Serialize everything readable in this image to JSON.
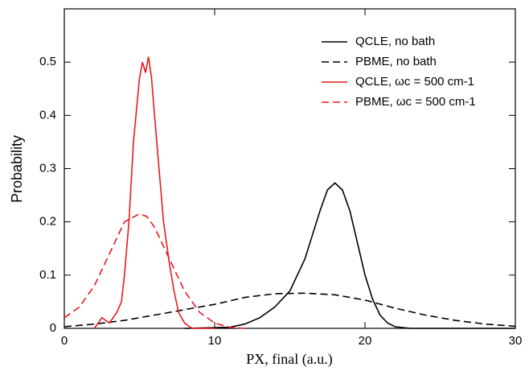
{
  "chart_data": {
    "type": "line",
    "xlabel": "PX, final (a.u.)",
    "ylabel": "Probability",
    "xlim": [
      0,
      30
    ],
    "ylim": [
      0,
      0.6
    ],
    "xticks": [
      0,
      10,
      20,
      30
    ],
    "yticks": [
      0,
      0.1,
      0.2,
      0.3,
      0.4,
      0.5
    ],
    "legend": "upper right",
    "series": [
      {
        "name": "QCLE, no bath",
        "color": "#000000",
        "dash": "solid",
        "x": [
          8,
          11,
          12,
          13,
          14,
          15,
          16,
          17,
          17.5,
          18,
          18.5,
          19,
          19.5,
          20,
          20.5,
          21,
          21.5,
          22,
          23,
          30
        ],
        "values": [
          0,
          0.002,
          0.008,
          0.02,
          0.04,
          0.07,
          0.13,
          0.22,
          0.26,
          0.273,
          0.26,
          0.22,
          0.16,
          0.1,
          0.055,
          0.025,
          0.01,
          0.003,
          0,
          0
        ]
      },
      {
        "name": "PBME, no bath",
        "color": "#000000",
        "dash": "dashed",
        "x": [
          0,
          2,
          4,
          6,
          8,
          10,
          12,
          14,
          16,
          18,
          20,
          22,
          24,
          26,
          28,
          30
        ],
        "values": [
          0.003,
          0.008,
          0.015,
          0.025,
          0.035,
          0.045,
          0.058,
          0.065,
          0.066,
          0.063,
          0.053,
          0.038,
          0.025,
          0.015,
          0.008,
          0.004
        ]
      },
      {
        "name": "QCLE, ωc = 500 cm-1",
        "color": "#e8191e",
        "dash": "solid",
        "x": [
          2,
          2.5,
          3,
          3.5,
          3.8,
          4,
          4.3,
          4.6,
          5,
          5.2,
          5.4,
          5.6,
          5.8,
          6,
          6.3,
          6.6,
          7,
          7.3,
          7.6,
          8,
          8.5,
          10
        ],
        "values": [
          0,
          0.02,
          0.01,
          0.03,
          0.05,
          0.1,
          0.2,
          0.35,
          0.47,
          0.5,
          0.48,
          0.51,
          0.47,
          0.4,
          0.3,
          0.2,
          0.12,
          0.07,
          0.03,
          0.01,
          0,
          0
        ]
      },
      {
        "name": "PBME, ωc = 500 cm-1",
        "color": "#e8191e",
        "dash": "dashed",
        "x": [
          0,
          1,
          2,
          3,
          4,
          5,
          5.5,
          6,
          7,
          8,
          9,
          10,
          11,
          12
        ],
        "values": [
          0.02,
          0.04,
          0.08,
          0.14,
          0.2,
          0.215,
          0.21,
          0.19,
          0.13,
          0.07,
          0.03,
          0.01,
          0.002,
          0
        ]
      }
    ]
  }
}
